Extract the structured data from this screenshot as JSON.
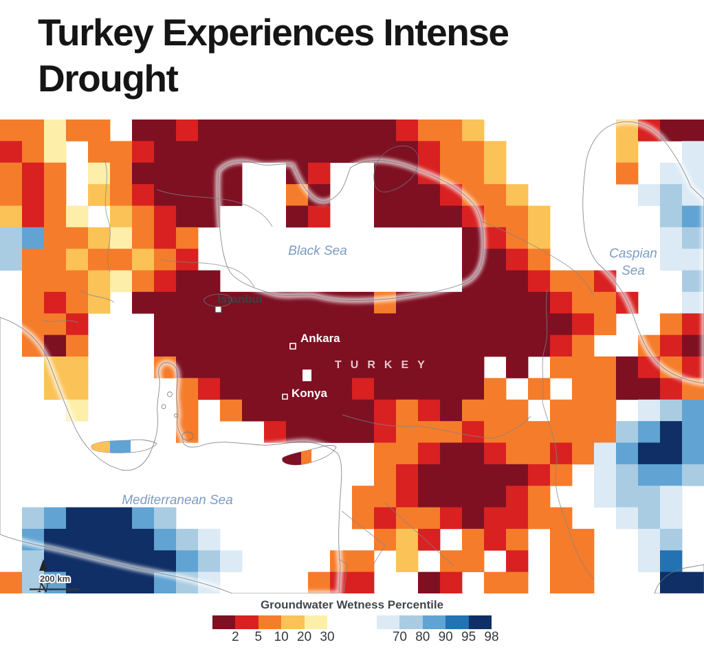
{
  "page": {
    "title_line1": "Turkey Experiences Intense",
    "title_line2": "Drought"
  },
  "map": {
    "labels": {
      "black_sea": "Black Sea",
      "caspian_line1": "Caspian",
      "caspian_line2": "Sea",
      "mediterranean": "Mediterranean Sea",
      "country": "TURKEY",
      "istanbul": "Istanbul",
      "ankara": "Ankara",
      "konya": "Konya",
      "north_letter": "N",
      "scale_text": "200 km"
    },
    "colors": {
      "sea": "#e6ecf5",
      "coast": "#6e747a",
      "border": "#7e858b",
      "sea_label": "#7b9cc2",
      "dark_city_label": "#3c4146",
      "light_city_label": "#ffffff"
    },
    "grid": {
      "cols": 32,
      "rows": 22,
      "palette": {
        "A": "#7e1022",
        "B": "#d92121",
        "C": "#f57c2b",
        "D": "#fbc257",
        "E": "#fdefa9",
        "F": "#dceaf5",
        "G": "#a9cce3",
        "H": "#61a3d2",
        "I": "#2272b4",
        "J": "#0f2f66"
      },
      "rows_data": [
        "CCECC.AABAAAAAAAAABCCD......DBAA",
        "BCE.CCBAAAAAAAAAAAABCCD.....D..F",
        "CBC.ECAAAAA..AB..AABCCD.....C.FF",
        "CBC.DCBAAAA..CA..AAABCCD.....FGF",
        "DBCE.DCBAA...AB..AAAABCCD.....GH",
        "GHCCDECBC............ABCD.....FG",
        "GCCDCCDCB............AABC.....FF",
        ".CCCDECBAA...........AAABCCB...G",
        ".CBCD.AAAAAAAAAAACAAAAAAABCCB..F",
        ".CCB...AAAAAAAAAAAAAAAAAAABC..CB",
        ".CAC...AAAAAAAAAAAAAAAAAABC..CBA",
        "..DD...CAAAAAAAAAAAAAA.A.CCCABCB",
        "..DD....CBAAAAAABAAAAAC.C.CCAABC",
        "...E....C.CAAAAAABCBACCC.CCC.FGH",
        "........C...BAAAABCCCBCCCCCCGHJH",
        ".................CCBAABCCBCFHJJH",
        ".................CBAAAAABC.FGHHG",
        "................CCBAAAABC..FGGF.",
        ".GHJJJHG........CBCCBABBCC..FGF.",
        ".HJJJJJHGF.......CDB.CBC.CC..FG.",
        ".GJJJJJJHGF....CC.D.CC.B.CC..FI.",
        "CGHJJJJHGF....CBB..AB.CC.CC...JJ"
      ]
    }
  },
  "legend": {
    "title": "Groundwater Wetness Percentile",
    "dry": {
      "colors": [
        "#7e1022",
        "#d92121",
        "#f57c2b",
        "#fbc257",
        "#fdefa9"
      ],
      "labels": [
        "2",
        "5",
        "10",
        "20",
        "30"
      ]
    },
    "wet": {
      "colors": [
        "#dceaf5",
        "#a9cce3",
        "#61a3d2",
        "#2272b4",
        "#0f2f66"
      ],
      "labels": [
        "70",
        "80",
        "90",
        "95",
        "98"
      ]
    }
  }
}
